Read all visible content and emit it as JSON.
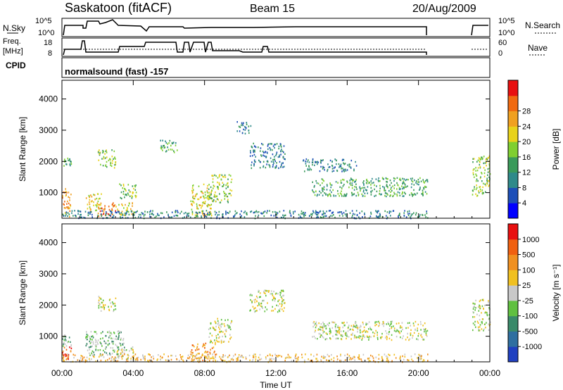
{
  "header": {
    "station": "Saskatoon (fitACF)",
    "beam": "Beam 15",
    "date": "20/Aug/2009",
    "nsky_label": "N.Sky",
    "nsearch_label": "N.Search",
    "freq_label": "Freq.",
    "freq_unit": "[MHz]",
    "nave_label": "Nave",
    "cpid_label": "CPID",
    "mode": "normalsound (fast) -157",
    "noise_ticks": [
      "10^5",
      "10^0"
    ],
    "freq_ticks": [
      "18",
      "8"
    ],
    "nave_ticks": [
      "60",
      "0"
    ]
  },
  "chart_data": [
    {
      "type": "heatmap",
      "name": "power",
      "xlabel": "Time UT",
      "ylabel": "Slant Range [km]",
      "x_ticks": [
        "00:00",
        "04:00",
        "08:00",
        "12:00",
        "16:00",
        "20:00",
        "00:00"
      ],
      "y_ticks": [
        "1000",
        "2000",
        "3000",
        "4000"
      ],
      "xlim": [
        0,
        24
      ],
      "ylim": [
        180,
        4600
      ],
      "colorbar": {
        "label": "Power [dB]",
        "ticks": [
          "4",
          "8",
          "12",
          "16",
          "20",
          "24",
          "28"
        ],
        "colors": [
          "#0000ff",
          "#1d4fb8",
          "#2f8a8a",
          "#3a9a5a",
          "#7fcf30",
          "#e8d21a",
          "#f0a020",
          "#f06a10",
          "#e81010"
        ]
      },
      "regions": [
        {
          "t0": 0.0,
          "t1": 0.5,
          "r0": 1850,
          "r1": 2150,
          "level": 3
        },
        {
          "t0": 0.0,
          "t1": 0.5,
          "r0": 250,
          "r1": 1150,
          "level": 6
        },
        {
          "t0": 1.3,
          "t1": 2.2,
          "r0": 400,
          "r1": 1000,
          "level": 5
        },
        {
          "t0": 2.0,
          "t1": 3.0,
          "r0": 1800,
          "r1": 2400,
          "level": 4
        },
        {
          "t0": 2.0,
          "t1": 3.0,
          "r0": 250,
          "r1": 700,
          "level": 7
        },
        {
          "t0": 3.0,
          "t1": 4.0,
          "r0": 300,
          "r1": 700,
          "level": 5
        },
        {
          "t0": 3.2,
          "t1": 4.2,
          "r0": 800,
          "r1": 1300,
          "level": 4
        },
        {
          "t0": 5.5,
          "t1": 6.5,
          "r0": 2300,
          "r1": 2700,
          "level": 3
        },
        {
          "t0": 7.2,
          "t1": 8.4,
          "r0": 250,
          "r1": 1300,
          "level": 5
        },
        {
          "t0": 8.2,
          "t1": 9.5,
          "r0": 700,
          "r1": 1600,
          "level": 4
        },
        {
          "t0": 9.8,
          "t1": 10.6,
          "r0": 2900,
          "r1": 3300,
          "level": 2
        },
        {
          "t0": 10.5,
          "t1": 12.5,
          "r0": 1800,
          "r1": 2600,
          "level": 2
        },
        {
          "t0": 13.5,
          "t1": 16.5,
          "r0": 1700,
          "r1": 2100,
          "level": 2
        },
        {
          "t0": 14.0,
          "t1": 20.5,
          "r0": 900,
          "r1": 1500,
          "level": 3
        },
        {
          "t0": 0.0,
          "t1": 20.5,
          "r0": 200,
          "r1": 450,
          "level": 2
        },
        {
          "t0": 23.0,
          "t1": 24.0,
          "r0": 900,
          "r1": 2200,
          "level": 4
        }
      ]
    },
    {
      "type": "heatmap",
      "name": "velocity",
      "xlabel": "Time UT",
      "ylabel": "Slant Range [km]",
      "x_ticks": [
        "00:00",
        "04:00",
        "08:00",
        "12:00",
        "16:00",
        "20:00",
        "00:00"
      ],
      "y_ticks": [
        "1000",
        "2000",
        "3000",
        "4000"
      ],
      "xlim": [
        0,
        24
      ],
      "ylim": [
        180,
        4600
      ],
      "colorbar": {
        "label": "Velocity [m s⁻¹]",
        "ticks": [
          "1000",
          "500",
          "100",
          "25",
          "-25",
          "-100",
          "-500",
          "-1000"
        ],
        "colors": [
          "#2040c0",
          "#2f6fa0",
          "#3a8a6a",
          "#60c040",
          "#c8c8c8",
          "#f0c020",
          "#f09020",
          "#f06010",
          "#e81010"
        ]
      },
      "regions": [
        {
          "t0": 0.0,
          "t1": 0.5,
          "r0": 250,
          "r1": 700,
          "level": 7
        },
        {
          "t0": 0.0,
          "t1": 0.5,
          "r0": 700,
          "r1": 1100,
          "level": 3
        },
        {
          "t0": 1.3,
          "t1": 3.5,
          "r0": 400,
          "r1": 1200,
          "level": 3
        },
        {
          "t0": 2.0,
          "t1": 3.0,
          "r0": 1800,
          "r1": 2300,
          "level": 4
        },
        {
          "t0": 3.0,
          "t1": 4.0,
          "r0": 300,
          "r1": 700,
          "level": 4
        },
        {
          "t0": 7.2,
          "t1": 8.6,
          "r0": 200,
          "r1": 800,
          "level": 6
        },
        {
          "t0": 8.2,
          "t1": 9.5,
          "r0": 800,
          "r1": 1600,
          "level": 4
        },
        {
          "t0": 10.5,
          "t1": 12.5,
          "r0": 1800,
          "r1": 2500,
          "level": 4
        },
        {
          "t0": 14.0,
          "t1": 20.5,
          "r0": 900,
          "r1": 1500,
          "level": 4
        },
        {
          "t0": 0.0,
          "t1": 20.5,
          "r0": 200,
          "r1": 450,
          "level": 5
        },
        {
          "t0": 23.0,
          "t1": 24.0,
          "r0": 1200,
          "r1": 2200,
          "level": 4
        }
      ]
    }
  ]
}
